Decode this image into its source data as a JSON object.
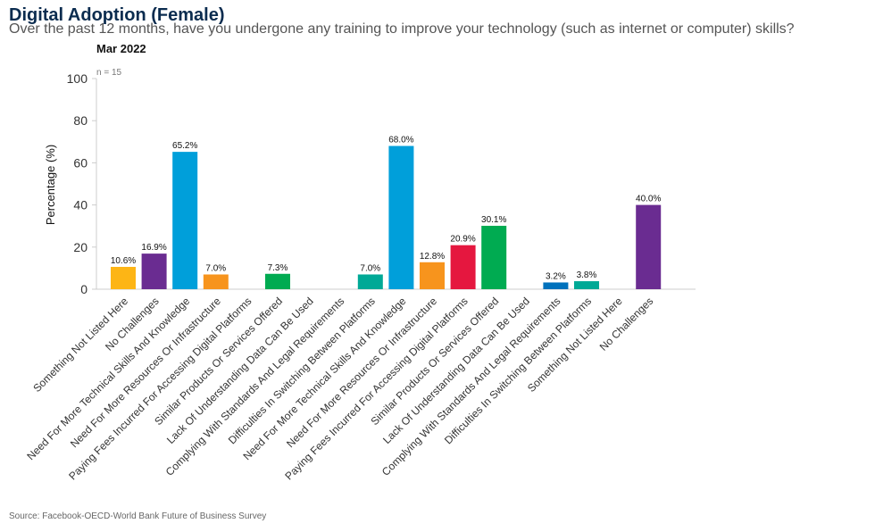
{
  "title": "Digital Adoption (Female)",
  "subtitle": "Over the past 12 months, have you undergone any training to improve your technology (such as internet or computer) skills?",
  "period": "Mar 2022",
  "sample_note": "n = 15",
  "source": "Source: Facebook-OECD-World Bank Future of Business Survey",
  "colors": {
    "yellow": "#FDB515",
    "purple": "#6A2C91",
    "blue": "#009FDA",
    "orange": "#F7941D",
    "green": "#00AB51",
    "teal": "#00A996",
    "red": "#E5173F",
    "darkblue": "#0071BC"
  },
  "chart_data": {
    "type": "bar",
    "ylabel": "Percentage (%)",
    "xlabel": "",
    "ylim": [
      0,
      100
    ],
    "yticks": [
      0,
      20,
      40,
      60,
      80,
      100
    ],
    "grid": false,
    "categories": [
      "Something Not Listed Here",
      "No Challenges",
      "Need For More Technical Skills And Knowledge",
      "Need For More Resources Or Infrastructure",
      "Paying Fees Incurred For Accessing Digital Platforms",
      "Similar Products Or Services Offered",
      "Lack Of Understanding Data Can Be Used",
      "Complying With Standards And Legal Requirements",
      "Difficulties In Switching Between Platforms",
      "Need For More Technical Skills And Knowledge",
      "Need For More Resources Or Infrastructure",
      "Paying Fees Incurred For Accessing Digital Platforms",
      "Similar Products Or Services Offered",
      "Lack Of Understanding Data Can Be Used",
      "Complying With Standards And Legal Requirements",
      "Difficulties In Switching Between Platforms",
      "Something Not Listed Here",
      "No Challenges"
    ],
    "values": [
      10.6,
      16.9,
      65.2,
      7.0,
      null,
      7.3,
      null,
      null,
      7.0,
      68.0,
      12.8,
      20.9,
      30.1,
      null,
      3.2,
      3.8,
      null,
      40.0
    ],
    "labels": [
      "10.6%",
      "16.9%",
      "65.2%",
      "7.0%",
      "",
      "7.3%",
      "",
      "",
      "7.0%",
      "68.0%",
      "12.8%",
      "20.9%",
      "30.1%",
      "",
      "3.2%",
      "3.8%",
      "",
      "40.0%"
    ],
    "bar_colors": [
      "yellow",
      "purple",
      "blue",
      "orange",
      "",
      "green",
      "",
      "",
      "teal",
      "blue",
      "orange",
      "red",
      "green",
      "",
      "darkblue",
      "teal",
      "",
      "purple"
    ]
  }
}
